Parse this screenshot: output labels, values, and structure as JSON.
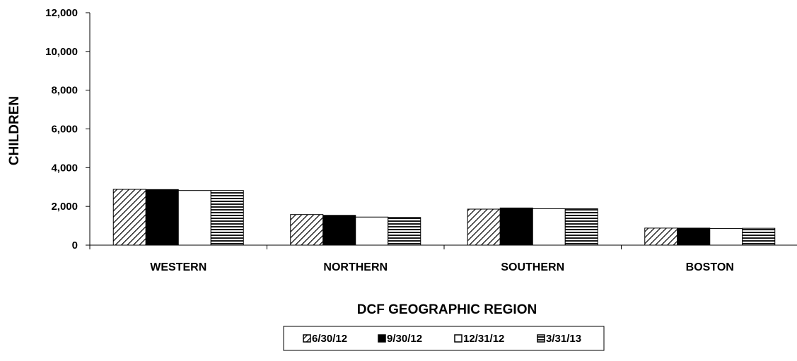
{
  "chart_data": {
    "type": "bar",
    "title": "",
    "xlabel": "DCF GEOGRAPHIC REGION",
    "ylabel": "CHILDREN",
    "categories": [
      "WESTERN",
      "NORTHERN",
      "SOUTHERN",
      "BOSTON"
    ],
    "ylim": [
      0,
      12000
    ],
    "yticks": [
      0,
      2000,
      4000,
      6000,
      8000,
      10000,
      12000
    ],
    "ytick_labels": [
      "0",
      "2,000",
      "4,000",
      "6,000",
      "8,000",
      "10,000",
      "12,000"
    ],
    "grid": false,
    "legend_position": "bottom-center",
    "series": [
      {
        "name": "6/30/12",
        "pattern": "diagonal-hatch",
        "color": "#000000",
        "values": [
          2880,
          1580,
          1860,
          880
        ]
      },
      {
        "name": "9/30/12",
        "pattern": "solid",
        "color": "#000000",
        "values": [
          2870,
          1540,
          1920,
          880
        ]
      },
      {
        "name": "12/31/12",
        "pattern": "empty",
        "color": "#ffffff",
        "values": [
          2820,
          1450,
          1880,
          860
        ]
      },
      {
        "name": "3/31/13",
        "pattern": "horizontal-lines",
        "color": "#000000",
        "values": [
          2820,
          1430,
          1880,
          870
        ]
      }
    ]
  }
}
